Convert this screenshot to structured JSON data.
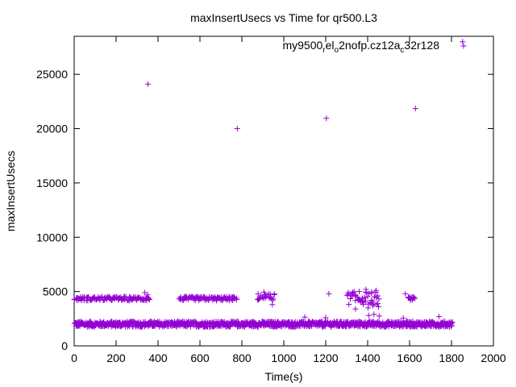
{
  "chart_data": {
    "type": "scatter",
    "title": "maxInsertUsecs vs Time for qr500.L3",
    "xlabel": "Time(s)",
    "ylabel": "maxInsertUsecs",
    "xlim": [
      0,
      2000
    ],
    "ylim": [
      0,
      28500
    ],
    "xticks": [
      0,
      200,
      400,
      600,
      800,
      1000,
      1200,
      1400,
      1600,
      1800,
      2000
    ],
    "yticks": [
      0,
      5000,
      10000,
      15000,
      20000,
      25000
    ],
    "grid": false,
    "legend_position": "top-right",
    "series": [
      {
        "name_parts": [
          {
            "t": "my9500",
            "sub": false
          },
          {
            "t": "r",
            "sub": true
          },
          {
            "t": "el",
            "sub": false
          },
          {
            "t": "o",
            "sub": true
          },
          {
            "t": "2nofp.cz12a",
            "sub": false
          },
          {
            "t": "c",
            "sub": true
          },
          {
            "t": "32r128",
            "sub": false
          }
        ],
        "color": "#9400d3",
        "marker": "plus",
        "outliers": [
          [
            352,
            24100
          ],
          [
            778,
            20000
          ],
          [
            1203,
            20950
          ],
          [
            1628,
            21850
          ],
          [
            1853,
            28000
          ]
        ],
        "baseline_band": {
          "x_range": [
            0,
            1800
          ],
          "step": 5,
          "y_center": 2000,
          "y_spread": 250
        },
        "high_band_segments": [
          {
            "x_range": [
              0,
              355
            ],
            "step": 6,
            "y_center": 4350,
            "y_spread": 180
          },
          {
            "x_range": [
              500,
              775
            ],
            "step": 6,
            "y_center": 4350,
            "y_spread": 180
          },
          {
            "x_range": [
              870,
              950
            ],
            "step": 8,
            "y_center": 4500,
            "y_spread": 300
          },
          {
            "x_range": [
              1300,
              1450
            ],
            "step": 7,
            "y_center": 4400,
            "y_spread": 600
          },
          {
            "x_range": [
              1590,
              1625
            ],
            "step": 6,
            "y_center": 4350,
            "y_spread": 150
          }
        ],
        "scattered_points": [
          [
            337,
            4900
          ],
          [
            350,
            4700
          ],
          [
            905,
            4950
          ],
          [
            935,
            4800
          ],
          [
            945,
            3800
          ],
          [
            1215,
            4800
          ],
          [
            1328,
            4900
          ],
          [
            1342,
            3400
          ],
          [
            1360,
            5000
          ],
          [
            1375,
            4100
          ],
          [
            1392,
            5200
          ],
          [
            1402,
            3500
          ],
          [
            1418,
            4200
          ],
          [
            1425,
            3700
          ],
          [
            1440,
            5100
          ],
          [
            1448,
            3900
          ],
          [
            1452,
            3600
          ],
          [
            1580,
            4800
          ],
          [
            1405,
            2800
          ],
          [
            1430,
            2900
          ],
          [
            1455,
            2750
          ],
          [
            1740,
            2700
          ],
          [
            1200,
            2600
          ],
          [
            1570,
            2550
          ],
          [
            1100,
            2650
          ]
        ]
      }
    ]
  }
}
